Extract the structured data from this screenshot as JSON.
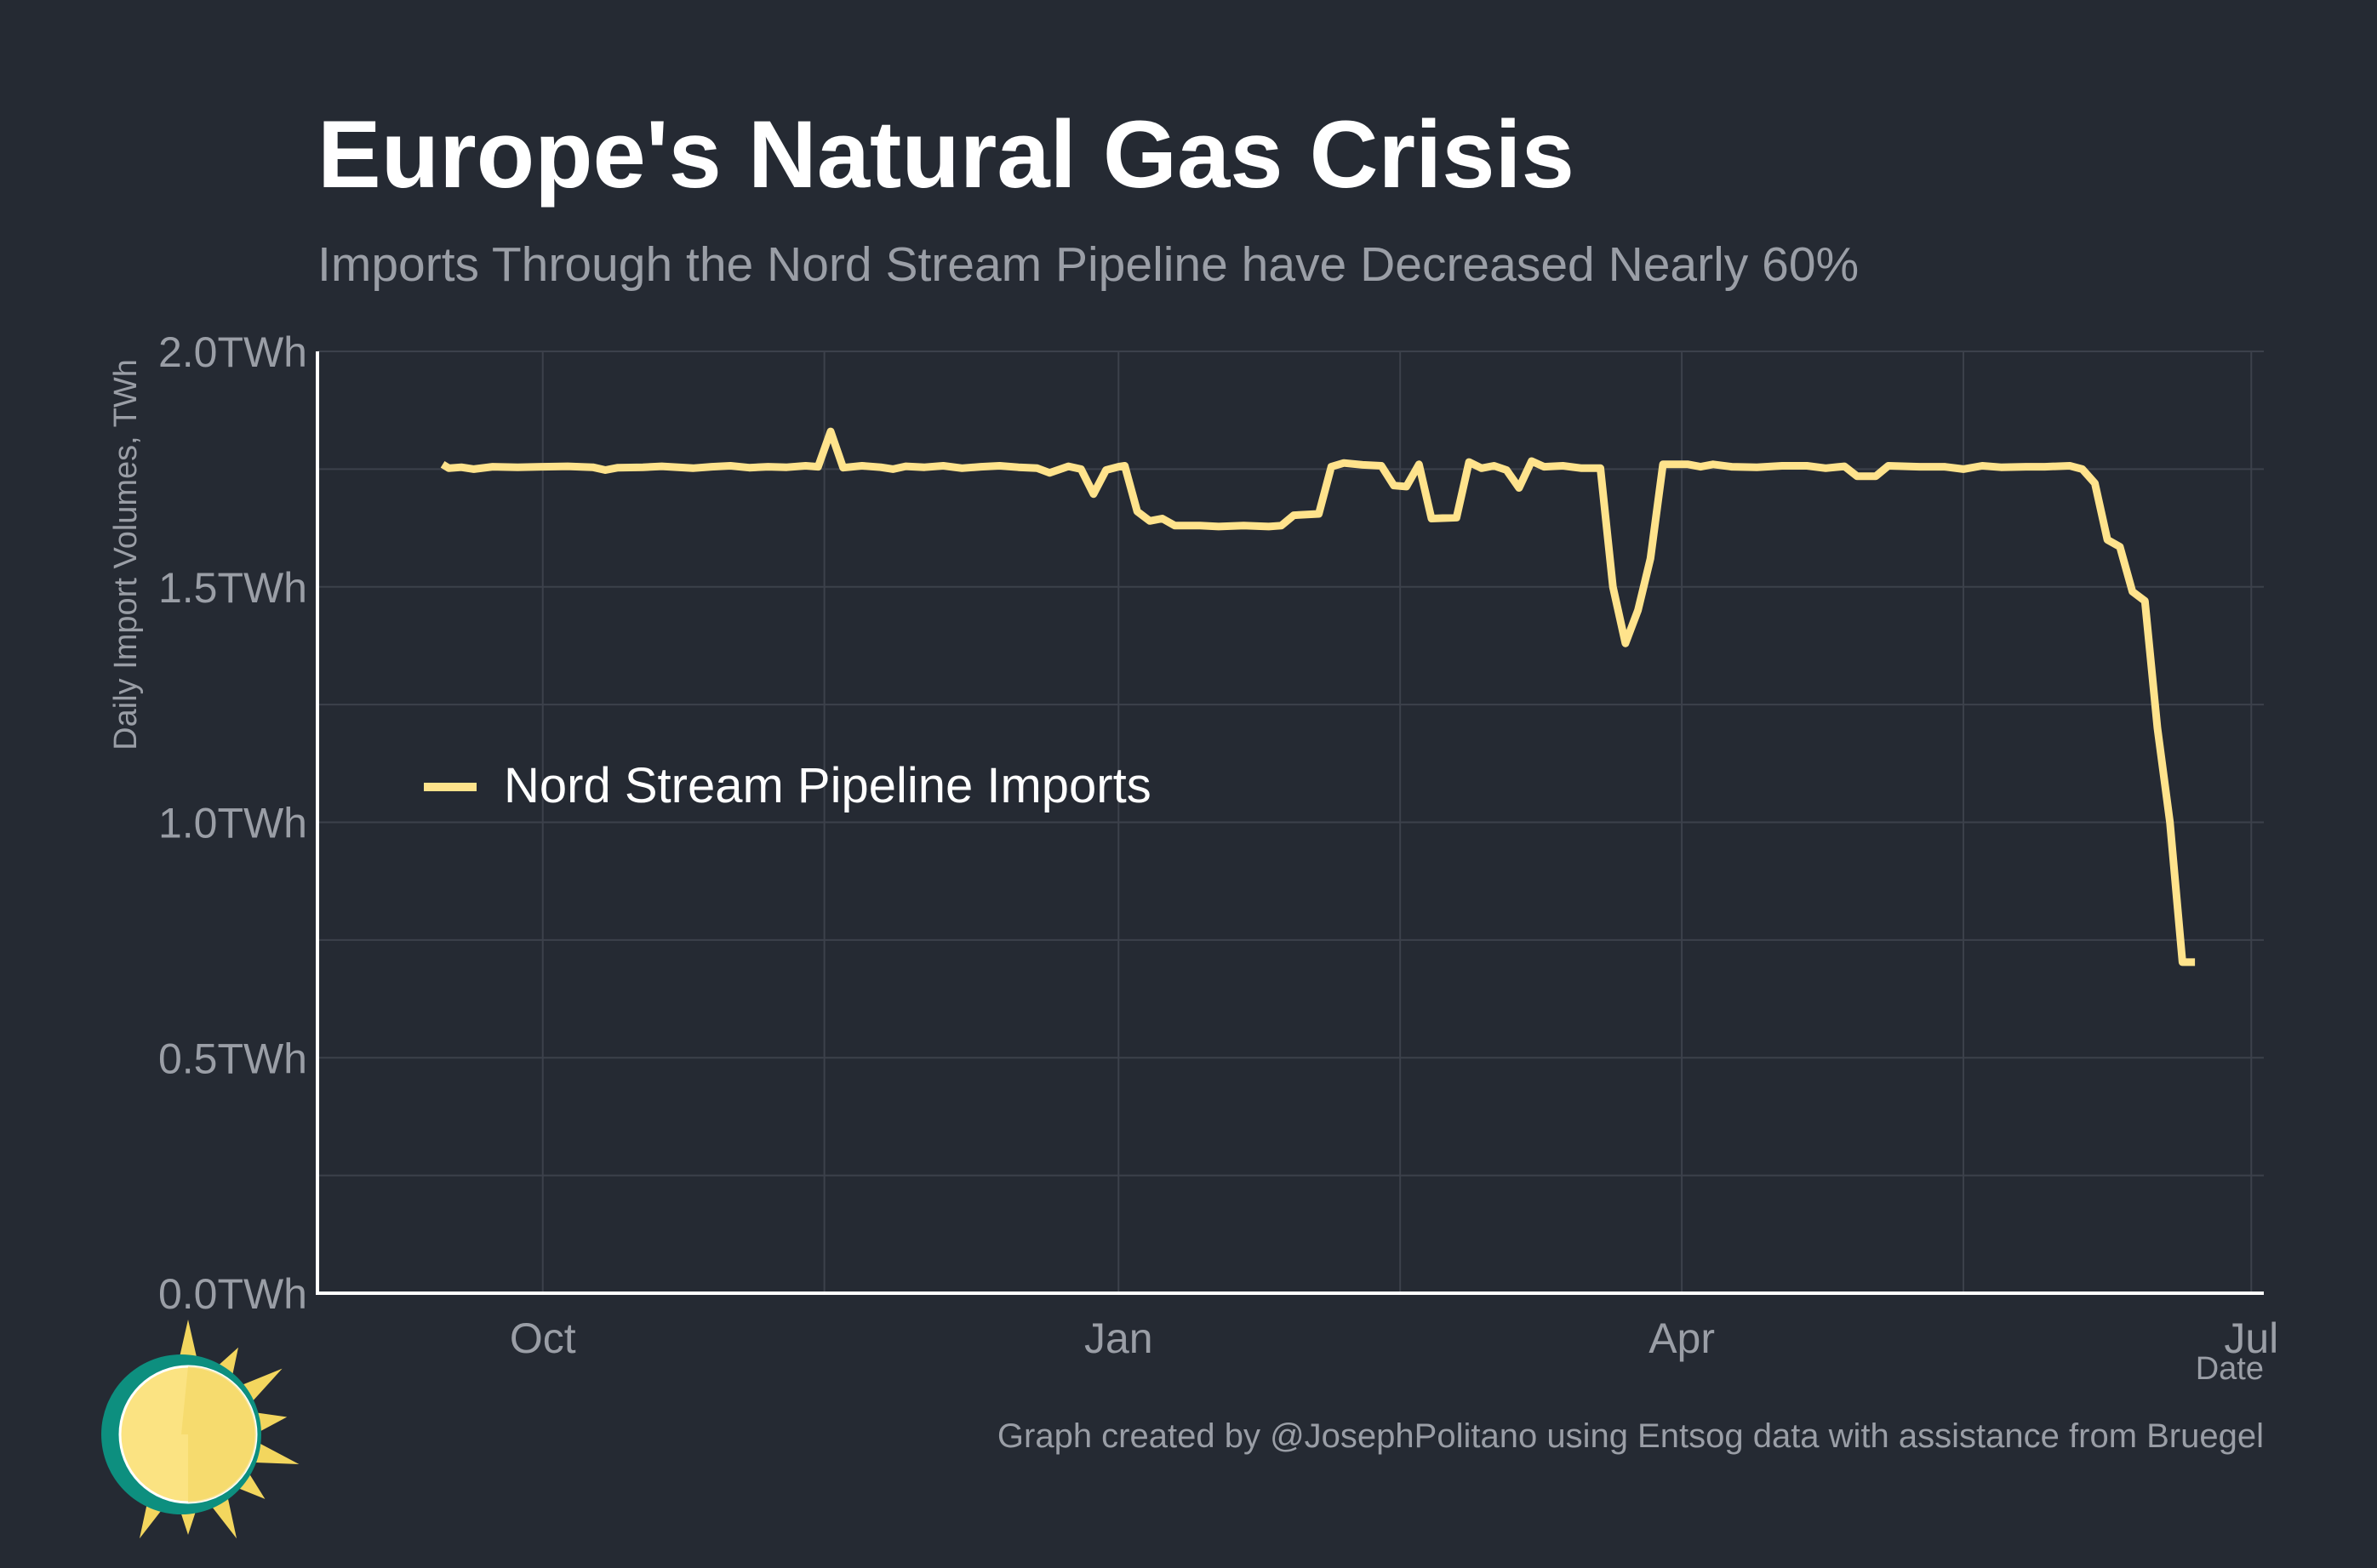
{
  "chart_data": {
    "type": "line",
    "title": "Europe's Natural Gas Crisis",
    "subtitle": "Imports Through the Nord Stream Pipeline have Decreased Nearly 60%",
    "xlabel": "Date",
    "ylabel": "Daily Import Volumes, TWh",
    "x_range": [
      "2021-08-26",
      "2022-07-03"
    ],
    "ylim": [
      0,
      2.0
    ],
    "y_ticks": [
      {
        "value": 0.0,
        "label": "0.0TWh"
      },
      {
        "value": 0.5,
        "label": "0.5TWh"
      },
      {
        "value": 1.0,
        "label": "1.0TWh"
      },
      {
        "value": 1.5,
        "label": "1.5TWh"
      },
      {
        "value": 2.0,
        "label": "2.0TWh"
      }
    ],
    "y_minor_gridlines": [
      0.25,
      0.75,
      1.25,
      1.75
    ],
    "x_ticks": [
      {
        "date": "2021-10-01",
        "label": "Oct"
      },
      {
        "date": "2022-01-01",
        "label": "Jan"
      },
      {
        "date": "2022-04-01",
        "label": "Apr"
      },
      {
        "date": "2022-07-01",
        "label": "Jul"
      }
    ],
    "x_minor_gridlines": [
      "2021-11-15",
      "2022-02-15",
      "2022-05-16"
    ],
    "grid": true,
    "legend_position": "middle-left",
    "colors": {
      "background": "#252a33",
      "grid": "#3c414b",
      "axis": "#ffffff",
      "series": "#ffe38c"
    },
    "series": [
      {
        "name": "Nord Stream Pipeline Imports",
        "color": "#ffe38c",
        "points": [
          [
            "2021-09-15",
            1.76
          ],
          [
            "2021-09-16",
            1.752
          ],
          [
            "2021-09-18",
            1.754
          ],
          [
            "2021-09-20",
            1.75
          ],
          [
            "2021-09-23",
            1.755
          ],
          [
            "2021-09-27",
            1.754
          ],
          [
            "2021-10-01",
            1.755
          ],
          [
            "2021-10-05",
            1.756
          ],
          [
            "2021-10-09",
            1.754
          ],
          [
            "2021-10-11",
            1.748
          ],
          [
            "2021-10-13",
            1.753
          ],
          [
            "2021-10-17",
            1.754
          ],
          [
            "2021-10-20",
            1.756
          ],
          [
            "2021-10-25",
            1.752
          ],
          [
            "2021-10-28",
            1.755
          ],
          [
            "2021-10-31",
            1.757
          ],
          [
            "2021-11-03",
            1.753
          ],
          [
            "2021-11-06",
            1.755
          ],
          [
            "2021-11-09",
            1.754
          ],
          [
            "2021-11-12",
            1.757
          ],
          [
            "2021-11-14",
            1.755
          ],
          [
            "2021-11-16",
            1.83
          ],
          [
            "2021-11-18",
            1.753
          ],
          [
            "2021-11-21",
            1.757
          ],
          [
            "2021-11-24",
            1.754
          ],
          [
            "2021-11-26",
            1.75
          ],
          [
            "2021-11-28",
            1.756
          ],
          [
            "2021-12-01",
            1.754
          ],
          [
            "2021-12-04",
            1.757
          ],
          [
            "2021-12-07",
            1.752
          ],
          [
            "2021-12-10",
            1.755
          ],
          [
            "2021-12-13",
            1.757
          ],
          [
            "2021-12-16",
            1.754
          ],
          [
            "2021-12-19",
            1.752
          ],
          [
            "2021-12-21",
            1.742
          ],
          [
            "2021-12-24",
            1.756
          ],
          [
            "2021-12-26",
            1.75
          ],
          [
            "2021-12-28",
            1.697
          ],
          [
            "2021-12-30",
            1.748
          ],
          [
            "2022-01-01",
            1.755
          ],
          [
            "2022-01-02",
            1.757
          ],
          [
            "2022-01-04",
            1.66
          ],
          [
            "2022-01-06",
            1.64
          ],
          [
            "2022-01-08",
            1.645
          ],
          [
            "2022-01-10",
            1.63
          ],
          [
            "2022-01-14",
            1.63
          ],
          [
            "2022-01-17",
            1.628
          ],
          [
            "2022-01-21",
            1.63
          ],
          [
            "2022-01-25",
            1.628
          ],
          [
            "2022-01-27",
            1.63
          ],
          [
            "2022-01-29",
            1.652
          ],
          [
            "2022-02-02",
            1.655
          ],
          [
            "2022-02-04",
            1.755
          ],
          [
            "2022-02-06",
            1.763
          ],
          [
            "2022-02-09",
            1.759
          ],
          [
            "2022-02-12",
            1.757
          ],
          [
            "2022-02-14",
            1.715
          ],
          [
            "2022-02-16",
            1.713
          ],
          [
            "2022-02-18",
            1.76
          ],
          [
            "2022-02-20",
            1.645
          ],
          [
            "2022-02-24",
            1.647
          ],
          [
            "2022-02-26",
            1.765
          ],
          [
            "2022-02-28",
            1.752
          ],
          [
            "2022-03-02",
            1.757
          ],
          [
            "2022-03-04",
            1.748
          ],
          [
            "2022-03-06",
            1.71
          ],
          [
            "2022-03-08",
            1.767
          ],
          [
            "2022-03-10",
            1.755
          ],
          [
            "2022-03-13",
            1.757
          ],
          [
            "2022-03-16",
            1.752
          ],
          [
            "2022-03-19",
            1.752
          ],
          [
            "2022-03-21",
            1.5
          ],
          [
            "2022-03-23",
            1.38
          ],
          [
            "2022-03-25",
            1.45
          ],
          [
            "2022-03-27",
            1.56
          ],
          [
            "2022-03-29",
            1.76
          ],
          [
            "2022-04-02",
            1.76
          ],
          [
            "2022-04-04",
            1.755
          ],
          [
            "2022-04-06",
            1.76
          ],
          [
            "2022-04-09",
            1.755
          ],
          [
            "2022-04-13",
            1.754
          ],
          [
            "2022-04-17",
            1.757
          ],
          [
            "2022-04-21",
            1.757
          ],
          [
            "2022-04-24",
            1.752
          ],
          [
            "2022-04-27",
            1.756
          ],
          [
            "2022-04-29",
            1.735
          ],
          [
            "2022-05-02",
            1.735
          ],
          [
            "2022-05-04",
            1.757
          ],
          [
            "2022-05-09",
            1.755
          ],
          [
            "2022-05-13",
            1.755
          ],
          [
            "2022-05-16",
            1.75
          ],
          [
            "2022-05-19",
            1.757
          ],
          [
            "2022-05-22",
            1.754
          ],
          [
            "2022-05-26",
            1.755
          ],
          [
            "2022-05-29",
            1.755
          ],
          [
            "2022-06-02",
            1.757
          ],
          [
            "2022-06-04",
            1.75
          ],
          [
            "2022-06-06",
            1.72
          ],
          [
            "2022-06-08",
            1.6
          ],
          [
            "2022-06-10",
            1.585
          ],
          [
            "2022-06-12",
            1.49
          ],
          [
            "2022-06-14",
            1.47
          ],
          [
            "2022-06-16",
            1.2
          ],
          [
            "2022-06-18",
            1.0
          ],
          [
            "2022-06-20",
            0.703
          ],
          [
            "2022-06-22",
            0.703
          ]
        ]
      }
    ]
  },
  "caption": "Graph created by @JosephPolitano using Entsog data with assistance from Bruegel",
  "logo": {
    "name": "sun-logo",
    "colors": {
      "ring": "#0d8f7f",
      "face": "#fbe382",
      "rays": "#f3d65e"
    }
  }
}
